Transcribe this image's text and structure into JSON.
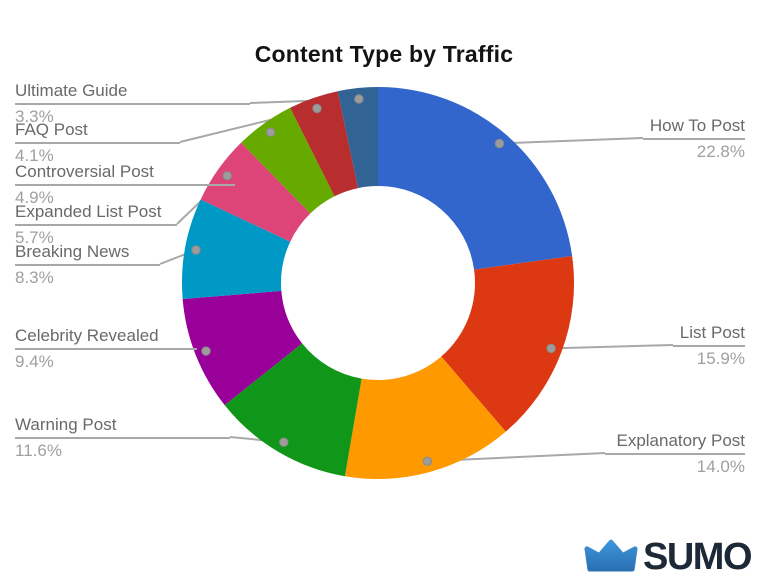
{
  "title": "Content Type by Traffic",
  "chart_data": {
    "type": "pie",
    "subtype": "donut",
    "title": "Content Type by Traffic",
    "legend_position": "none",
    "labels_style": "outside-with-leader-lines",
    "direction": "clockwise",
    "rotation_deg": 0,
    "inner_radius_ratio": 0.5,
    "background": "#ffffff",
    "categories": [
      "How To Post",
      "List Post",
      "Explanatory Post",
      "Warning Post",
      "Celebrity Revealed",
      "Breaking News",
      "Expanded List Post",
      "Controversial Post",
      "FAQ Post",
      "Ultimate Guide"
    ],
    "values": [
      22.8,
      15.9,
      14.0,
      11.6,
      9.4,
      8.3,
      5.7,
      4.9,
      4.1,
      3.3
    ],
    "slices": [
      {
        "label": "How To Post",
        "value": 22.8,
        "percent_text": "22.8%",
        "color": "#3366CC",
        "side": "right"
      },
      {
        "label": "List Post",
        "value": 15.9,
        "percent_text": "15.9%",
        "color": "#DC3912",
        "side": "right"
      },
      {
        "label": "Explanatory Post",
        "value": 14.0,
        "percent_text": "14.0%",
        "color": "#FF9900",
        "side": "right"
      },
      {
        "label": "Warning Post",
        "value": 11.6,
        "percent_text": "11.6%",
        "color": "#109618",
        "side": "left"
      },
      {
        "label": "Celebrity Revealed",
        "value": 9.4,
        "percent_text": "9.4%",
        "color": "#990099",
        "side": "left"
      },
      {
        "label": "Breaking News",
        "value": 8.3,
        "percent_text": "8.3%",
        "color": "#0099C6",
        "side": "left"
      },
      {
        "label": "Expanded List Post",
        "value": 5.7,
        "percent_text": "5.7%",
        "color": "#DD4477",
        "side": "left"
      },
      {
        "label": "Controversial Post",
        "value": 4.9,
        "percent_text": "4.9%",
        "color": "#66AA00",
        "side": "left"
      },
      {
        "label": "FAQ Post",
        "value": 4.1,
        "percent_text": "4.1%",
        "color": "#B82E2E",
        "side": "left"
      },
      {
        "label": "Ultimate Guide",
        "value": 3.3,
        "percent_text": "3.3%",
        "color": "#316395",
        "side": "left"
      }
    ],
    "leader_line_color": "#a8a8a8",
    "label_text_color": "#69696b",
    "percent_text_color": "#9da0a2"
  },
  "branding": {
    "logo_text": "SUMO",
    "logo_icon": "crown-icon",
    "logo_icon_color": "#2E81C6",
    "logo_icon_color_dark": "#2A72B4",
    "logo_text_color": "#1D2936"
  }
}
